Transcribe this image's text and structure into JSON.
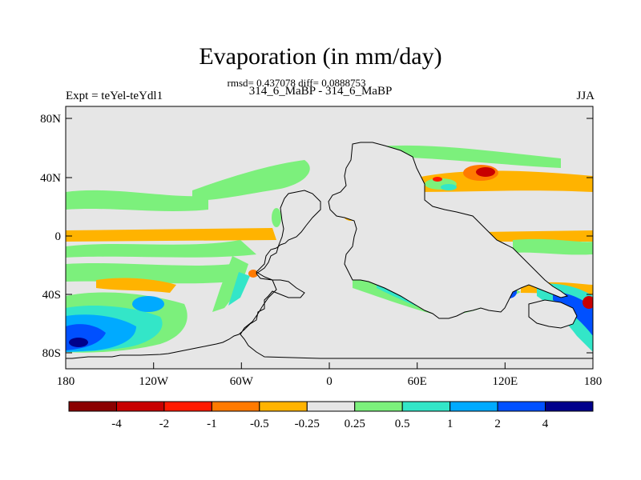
{
  "title": "Evaporation (in mm/day)",
  "stats_line": "rmsd= 0.437078 diff= 0.0888753",
  "comparison": "314_6_MaBP - 314_6_MaBP",
  "experiment": "Expt = teYel-teYdl1",
  "season": "JJA",
  "map": {
    "projection": "cylindrical-equidistant",
    "lon_range": [
      -180,
      180
    ],
    "lat_range": [
      -90,
      90
    ],
    "background_color": "#e6e6e6",
    "y_ticks": [
      "80N",
      "40N",
      "0",
      "40S",
      "80S"
    ],
    "x_ticks": [
      "180",
      "120W",
      "60W",
      "0",
      "60E",
      "120E",
      "180"
    ]
  },
  "colorbar": {
    "colors": [
      "#8b0000",
      "#c80000",
      "#ff1a00",
      "#ff7a00",
      "#ffb300",
      "#e6e6e6",
      "#7cf07c",
      "#33e6c8",
      "#00aaff",
      "#0050ff",
      "#00008b"
    ],
    "labels": [
      "-4",
      "-2",
      "-1",
      "-0.5",
      "-0.25",
      "0.25",
      "0.5",
      "1",
      "2",
      "4"
    ]
  }
}
